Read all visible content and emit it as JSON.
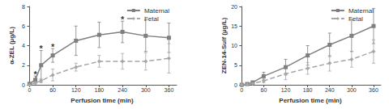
{
  "chart_data": [
    {
      "type": "line",
      "y_label": "α-ZEL (µg/L)",
      "x_label": "Perfusion time (min)",
      "x": [
        0,
        15,
        30,
        60,
        120,
        180,
        240,
        300,
        360
      ],
      "xlim": [
        -5,
        380
      ],
      "xticks": [
        0,
        60,
        120,
        180,
        240,
        300,
        360
      ],
      "ylim": [
        0,
        8
      ],
      "yticks": [
        0,
        2,
        4,
        6,
        8
      ],
      "grid": false,
      "legend": "top-right",
      "series": [
        {
          "name": "Maternal",
          "color": "#7f7f7f",
          "marker": "square",
          "line_style": "solid",
          "values": [
            0.1,
            0.5,
            2.0,
            3.0,
            4.5,
            5.1,
            5.4,
            5.0,
            4.8
          ],
          "errors": [
            0.1,
            0.4,
            1.5,
            0.7,
            1.5,
            1.3,
            1.1,
            1.6,
            1.5
          ]
        },
        {
          "name": "Fetal",
          "color": "#a6a6a6",
          "marker": "diamond",
          "line_style": "dashed",
          "values": [
            0.0,
            0.2,
            0.4,
            1.0,
            1.8,
            2.4,
            2.4,
            2.4,
            2.7
          ],
          "errors": [
            0.05,
            0.1,
            0.2,
            0.6,
            0.4,
            0.6,
            0.8,
            0.9,
            1.5
          ]
        }
      ],
      "annotations": [
        {
          "x": 15,
          "y": 1.1,
          "text": "*"
        },
        {
          "x": 30,
          "y": 3.7,
          "text": "*"
        },
        {
          "x": 60,
          "y": 3.9,
          "text": "*"
        },
        {
          "x": 240,
          "y": 6.7,
          "text": "*"
        }
      ]
    },
    {
      "type": "line",
      "y_label": "ZEN-14-Sulf (µg/L)",
      "x_label": "Perfusion time (min)",
      "x": [
        0,
        15,
        30,
        60,
        120,
        180,
        240,
        300,
        360
      ],
      "xlim": [
        -5,
        380
      ],
      "xticks": [
        0,
        60,
        120,
        180,
        240,
        300,
        360
      ],
      "ylim": [
        0,
        20
      ],
      "yticks": [
        0,
        5,
        10,
        15,
        20
      ],
      "grid": false,
      "legend": "top-right",
      "series": [
        {
          "name": "Maternal",
          "color": "#7f7f7f",
          "marker": "square",
          "line_style": "solid",
          "values": [
            0.0,
            0.2,
            0.6,
            2.2,
            4.5,
            7.5,
            10.2,
            12.5,
            15.0
          ],
          "errors": [
            0.05,
            0.1,
            0.3,
            1.0,
            2.0,
            2.5,
            3.0,
            4.0,
            4.5
          ]
        },
        {
          "name": "Fetal",
          "color": "#a6a6a6",
          "marker": "diamond",
          "line_style": "dashed",
          "values": [
            0.0,
            0.1,
            0.3,
            1.0,
            2.8,
            4.2,
            5.5,
            6.5,
            8.5
          ],
          "errors": [
            0.05,
            0.1,
            0.2,
            0.5,
            1.5,
            1.5,
            2.0,
            2.0,
            3.0
          ]
        }
      ],
      "annotations": []
    }
  ]
}
